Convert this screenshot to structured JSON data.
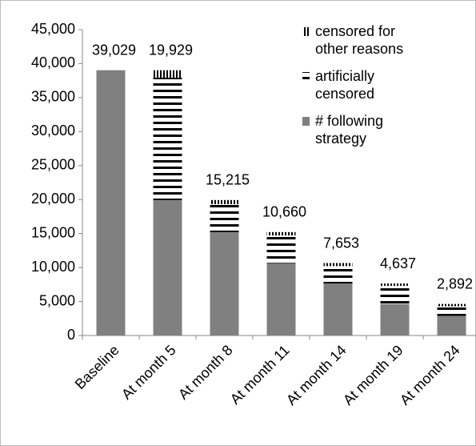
{
  "chart_data": {
    "type": "stacked-bar",
    "categories": [
      "Baseline",
      "At month 5",
      "At month 8",
      "At month 11",
      "At month 14",
      "At month 19",
      "At month 24"
    ],
    "series": [
      {
        "name": "# following strategy",
        "color": "#808080",
        "pattern": "solid",
        "values": [
          39029,
          19929,
          15215,
          10660,
          7653,
          4637,
          2892
        ],
        "value_labels": [
          "39,029",
          "19,929",
          "15,215",
          "10,660",
          "7,653",
          "4,637",
          "2,892"
        ]
      },
      {
        "name": "artificially censored",
        "color": "#000000",
        "pattern": "horizontal",
        "values": [
          0,
          18000,
          4114,
          4055,
          2557,
          2666,
          1415
        ]
      },
      {
        "name": "censored for other reasons",
        "color": "#000000",
        "pattern": "vertical",
        "values": [
          0,
          1100,
          600,
          500,
          450,
          350,
          330
        ]
      }
    ],
    "ylim": [
      0,
      45000
    ],
    "yticks": [
      0,
      {
        "value": 5000,
        "label": "5,000"
      },
      {
        "value": 10000,
        "label": "10,000"
      },
      {
        "value": 15000,
        "label": "15,000"
      },
      {
        "value": 20000,
        "label": "20,000"
      },
      {
        "value": 25000,
        "label": "25,000"
      },
      {
        "value": 30000,
        "label": "30,000"
      },
      {
        "value": 35000,
        "label": "35,000"
      },
      {
        "value": 40000,
        "label": "40,000"
      },
      {
        "value": 45000,
        "label": "45,000"
      }
    ],
    "grid": false,
    "legend": "top-right"
  }
}
